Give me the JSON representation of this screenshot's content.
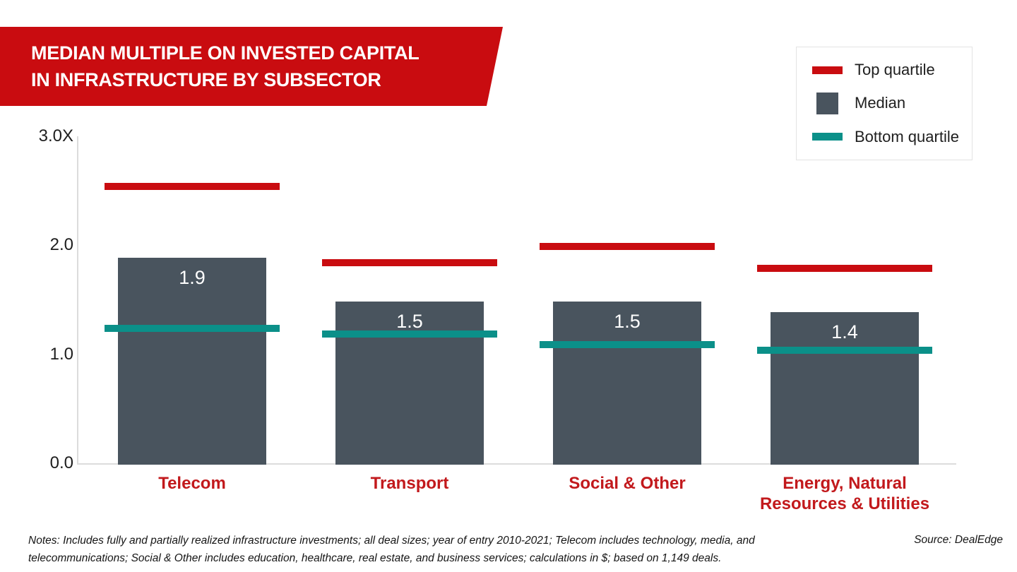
{
  "banner": {
    "title_line1": "MEDIAN MULTIPLE ON INVESTED CAPITAL",
    "title_line2": "IN INFRASTRUCTURE BY SUBSECTOR",
    "background_color": "#c90c10",
    "text_color": "#ffffff"
  },
  "legend": {
    "items": [
      {
        "label": "Top quartile",
        "swatch": "line",
        "color": "#c90c10"
      },
      {
        "label": "Median",
        "swatch": "square",
        "color": "#49545e"
      },
      {
        "label": "Bottom quartile",
        "swatch": "line",
        "color": "#0b9089"
      }
    ]
  },
  "chart_data": {
    "type": "bar",
    "title": "Median multiple on invested capital in infrastructure by subsector",
    "categories": [
      "Telecom",
      "Transport",
      "Social & Other",
      "Energy, Natural Resources & Utilities"
    ],
    "series": [
      {
        "name": "Top quartile",
        "style": "dash",
        "color": "#c90c10",
        "values": [
          2.55,
          1.85,
          2.0,
          1.8
        ]
      },
      {
        "name": "Median",
        "style": "bar",
        "color": "#49545e",
        "values": [
          1.9,
          1.5,
          1.5,
          1.4
        ]
      },
      {
        "name": "Bottom quartile",
        "style": "dash",
        "color": "#0b9089",
        "values": [
          1.25,
          1.2,
          1.1,
          1.05
        ]
      }
    ],
    "bar_labels": [
      "1.9",
      "1.5",
      "1.5",
      "1.4"
    ],
    "ylim": [
      0.0,
      3.0
    ],
    "yticks": [
      {
        "value": 3.0,
        "label": "3.0X"
      },
      {
        "value": 2.0,
        "label": "2.0"
      },
      {
        "value": 1.0,
        "label": "1.0"
      },
      {
        "value": 0.0,
        "label": "0.0"
      }
    ],
    "grid": false,
    "legend_position": "top-right",
    "category_label_color": "#c2191c"
  },
  "footer": {
    "notes": "Notes: Includes fully and partially realized infrastructure investments; all deal sizes; year of entry 2010-2021;  Telecom includes technology, media, and telecommunications; Social & Other includes education, healthcare, real estate, and business services; calculations in $; based on 1,149 deals.",
    "source": "Source: DealEdge"
  }
}
